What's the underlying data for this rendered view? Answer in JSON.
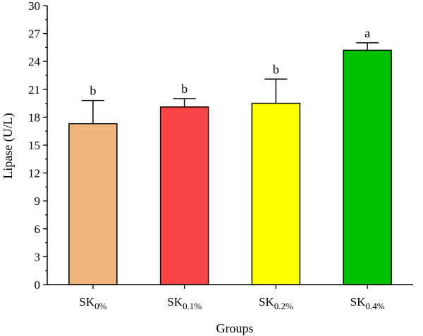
{
  "chart_data": {
    "type": "bar",
    "title": "",
    "xlabel": "Groups",
    "ylabel": "Lipase (U/L)",
    "ylim": [
      0,
      30
    ],
    "yticks": [
      0,
      3,
      6,
      9,
      12,
      15,
      18,
      21,
      24,
      27,
      30
    ],
    "grid": false,
    "categories": [
      {
        "base": "SK",
        "sub": "0%"
      },
      {
        "base": "SK",
        "sub": "0.1%"
      },
      {
        "base": "SK",
        "sub": "0.2%"
      },
      {
        "base": "SK",
        "sub": "0.4%"
      }
    ],
    "values": [
      17.3,
      19.1,
      19.5,
      25.2
    ],
    "errors": [
      2.5,
      0.9,
      2.6,
      0.8
    ],
    "significance": [
      "b",
      "b",
      "b",
      "a"
    ],
    "colors": [
      "#F0B57C",
      "#F84444",
      "#FFFF00",
      "#00C000"
    ]
  }
}
